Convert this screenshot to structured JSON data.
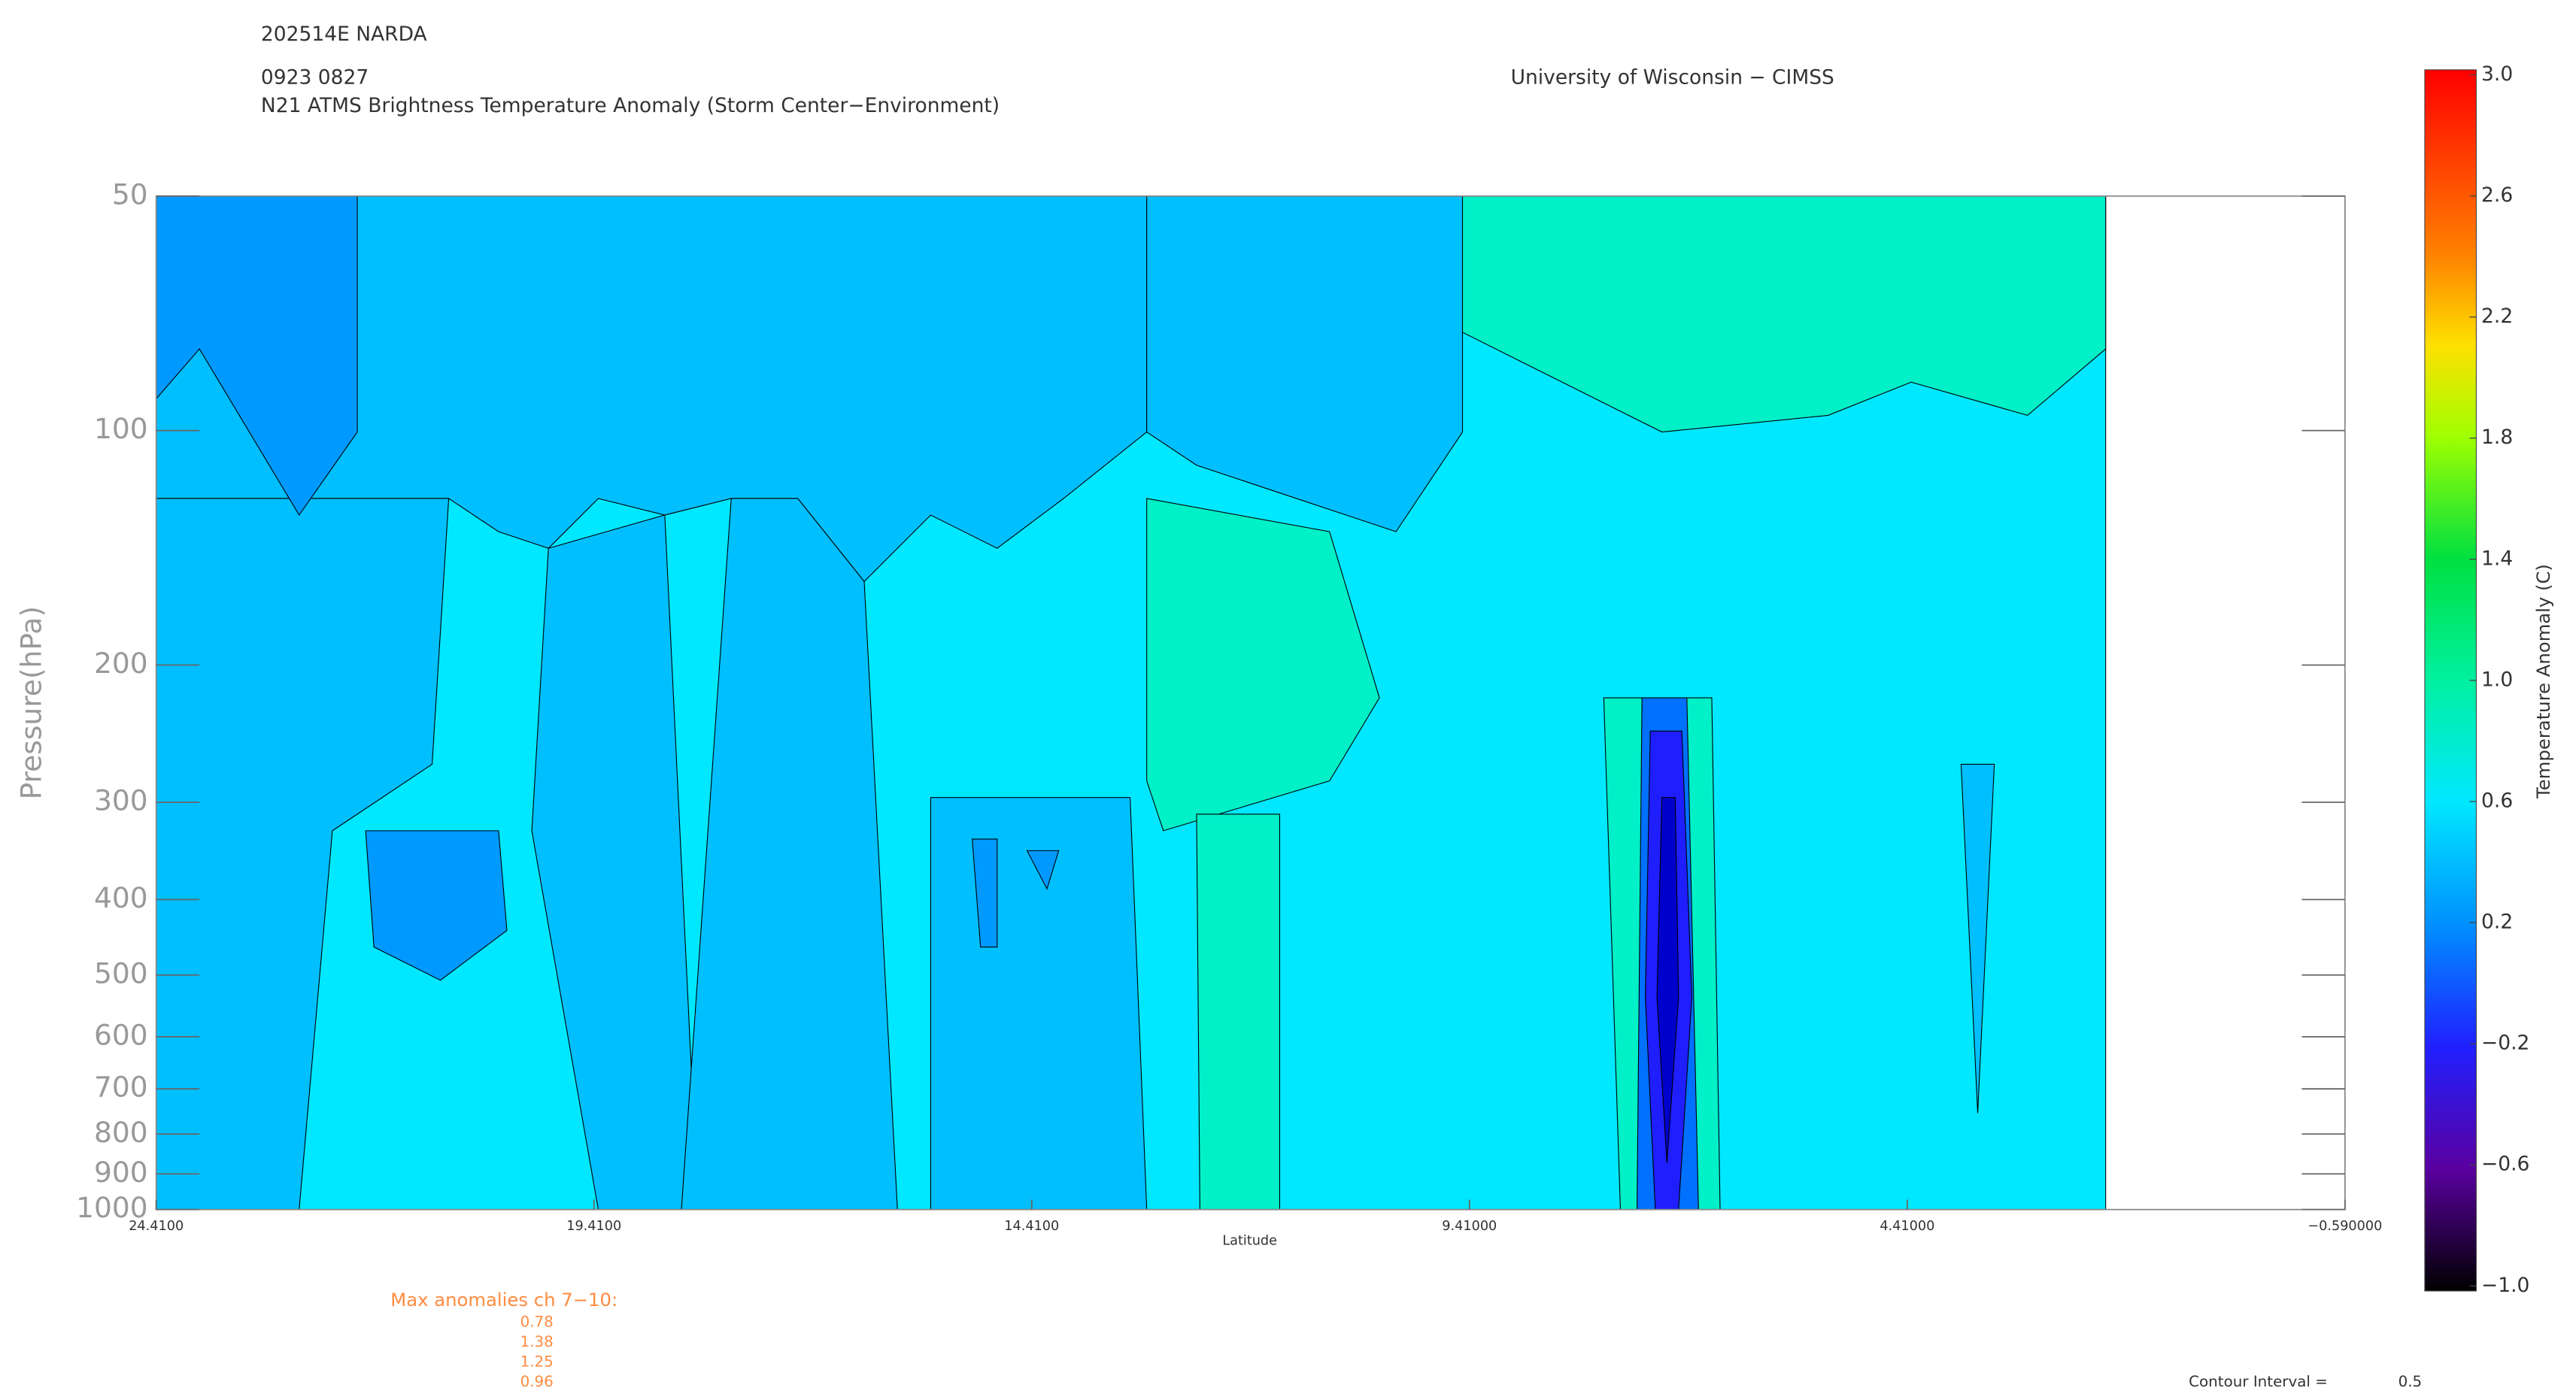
{
  "chart_data": {
    "type": "contour",
    "storm_id": "202514E NARDA",
    "datetime": "0923 0827",
    "title": "N21 ATMS Brightness Temperature Anomaly (Storm Center−Environment)",
    "institution": "University of Wisconsin − CIMSS",
    "xlabel": "Latitude",
    "ylabel": "Pressure(hPa)",
    "xlim": [
      24.41,
      -0.59
    ],
    "xticks": [
      {
        "value": 24.41,
        "label": "24.4100"
      },
      {
        "value": 19.41,
        "label": "19.4100"
      },
      {
        "value": 14.41,
        "label": "14.4100"
      },
      {
        "value": 9.41,
        "label": "9.41000"
      },
      {
        "value": 4.41,
        "label": "4.41000"
      },
      {
        "value": -0.59,
        "label": "−0.590000"
      }
    ],
    "ylim": [
      50,
      1000
    ],
    "ylog": true,
    "yinverted": true,
    "yticks": [
      50,
      100,
      200,
      300,
      400,
      500,
      600,
      700,
      800,
      900,
      1000
    ],
    "colorbar": {
      "label": "Temperature Anomaly (C)",
      "range": [
        -1,
        3
      ],
      "ticks": [
        {
          "value": 3,
          "label": "3.0"
        },
        {
          "value": 2.6,
          "label": "2.6"
        },
        {
          "value": 2.2,
          "label": "2.2"
        },
        {
          "value": 1.8,
          "label": "1.8"
        },
        {
          "value": 1.4,
          "label": "1.4"
        },
        {
          "value": 1,
          "label": "1.0"
        },
        {
          "value": 0.6,
          "label": "0.6"
        },
        {
          "value": 0.2,
          "label": "0.2"
        },
        {
          "value": -0.2,
          "label": "−0.2"
        },
        {
          "value": -0.6,
          "label": "−0.6"
        },
        {
          "value": -1,
          "label": "−1.0"
        }
      ],
      "color_stops": [
        {
          "value": -1,
          "color": "#000000"
        },
        {
          "value": -0.6,
          "color": "#5a00a0"
        },
        {
          "value": -0.2,
          "color": "#2020ff"
        },
        {
          "value": 0.2,
          "color": "#0090ff"
        },
        {
          "value": 0.6,
          "color": "#00e8ff"
        },
        {
          "value": 1,
          "color": "#00f0a0"
        },
        {
          "value": 1.4,
          "color": "#00e040"
        },
        {
          "value": 1.8,
          "color": "#a0ff00"
        },
        {
          "value": 2.1,
          "color": "#ffe000"
        },
        {
          "value": 2.4,
          "color": "#ff8000"
        },
        {
          "value": 3,
          "color": "#ff0000"
        }
      ]
    },
    "max_anomalies": {
      "label": "Max anomalies ch 7−10:",
      "values": [
        0.78,
        1.38,
        1.25,
        0.96
      ]
    },
    "contour_interval": {
      "label": "Contour Interval =",
      "value": 0.5
    }
  }
}
